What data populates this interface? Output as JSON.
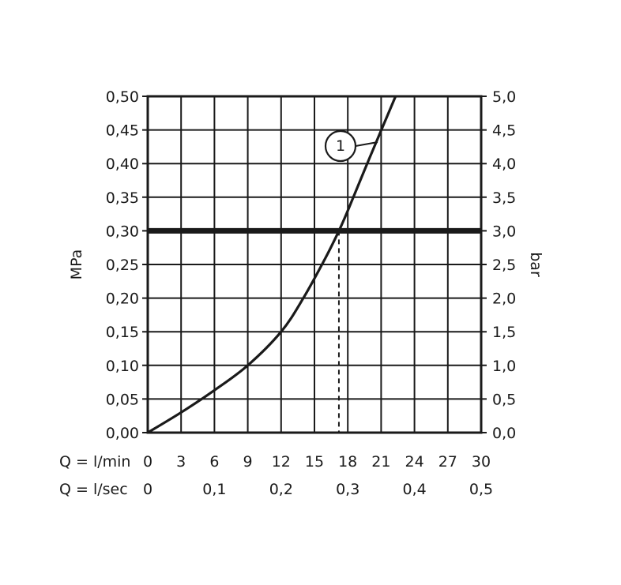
{
  "chart_data": {
    "type": "line",
    "ylabel_left": "MPa",
    "ylabel_right": "bar",
    "x_row_labels": [
      "Q = l/min",
      "Q = l/sec"
    ],
    "xlim": [
      0,
      30
    ],
    "ylim": [
      0,
      0.5
    ],
    "x_ticks": [
      {
        "v": 0,
        "label": "0"
      },
      {
        "v": 3,
        "label": "3"
      },
      {
        "v": 6,
        "label": "6"
      },
      {
        "v": 9,
        "label": "9"
      },
      {
        "v": 12,
        "label": "12"
      },
      {
        "v": 15,
        "label": "15"
      },
      {
        "v": 18,
        "label": "18"
      },
      {
        "v": 21,
        "label": "21"
      },
      {
        "v": 24,
        "label": "24"
      },
      {
        "v": 27,
        "label": "27"
      },
      {
        "v": 30,
        "label": "30"
      }
    ],
    "x2_ticks": [
      {
        "v": 0,
        "label": "0"
      },
      {
        "v": 6,
        "label": "0,1"
      },
      {
        "v": 12,
        "label": "0,2"
      },
      {
        "v": 18,
        "label": "0,3"
      },
      {
        "v": 24,
        "label": "0,4"
      },
      {
        "v": 30,
        "label": "0,5"
      }
    ],
    "y_ticks": [
      {
        "v": 0,
        "label": "0,00"
      },
      {
        "v": 0.05,
        "label": "0,05"
      },
      {
        "v": 0.1,
        "label": "0,10"
      },
      {
        "v": 0.15,
        "label": "0,15"
      },
      {
        "v": 0.2,
        "label": "0,20"
      },
      {
        "v": 0.25,
        "label": "0,25"
      },
      {
        "v": 0.3,
        "label": "0,30"
      },
      {
        "v": 0.35,
        "label": "0,35"
      },
      {
        "v": 0.4,
        "label": "0,40"
      },
      {
        "v": 0.45,
        "label": "0,45"
      },
      {
        "v": 0.5,
        "label": "0,50"
      }
    ],
    "y2_ticks": [
      {
        "v": 0,
        "label": "0,0"
      },
      {
        "v": 0.05,
        "label": "0,5"
      },
      {
        "v": 0.1,
        "label": "1,0"
      },
      {
        "v": 0.15,
        "label": "1,5"
      },
      {
        "v": 0.2,
        "label": "2,0"
      },
      {
        "v": 0.25,
        "label": "2,5"
      },
      {
        "v": 0.3,
        "label": "3,0"
      },
      {
        "v": 0.35,
        "label": "3,5"
      },
      {
        "v": 0.4,
        "label": "4,0"
      },
      {
        "v": 0.45,
        "label": "4,5"
      },
      {
        "v": 0.5,
        "label": "5,0"
      }
    ],
    "grid": true,
    "series": [
      {
        "marker_label": "1",
        "x": [
          0,
          3,
          6,
          9,
          12,
          14,
          16,
          17.2,
          18,
          20,
          22.3
        ],
        "y": [
          0,
          0.03,
          0.063,
          0.1,
          0.15,
          0.2,
          0.26,
          0.3,
          0.33,
          0.41,
          0.5
        ]
      }
    ],
    "reference_line_y": 0.3,
    "reference_drop_x": 17.2
  }
}
